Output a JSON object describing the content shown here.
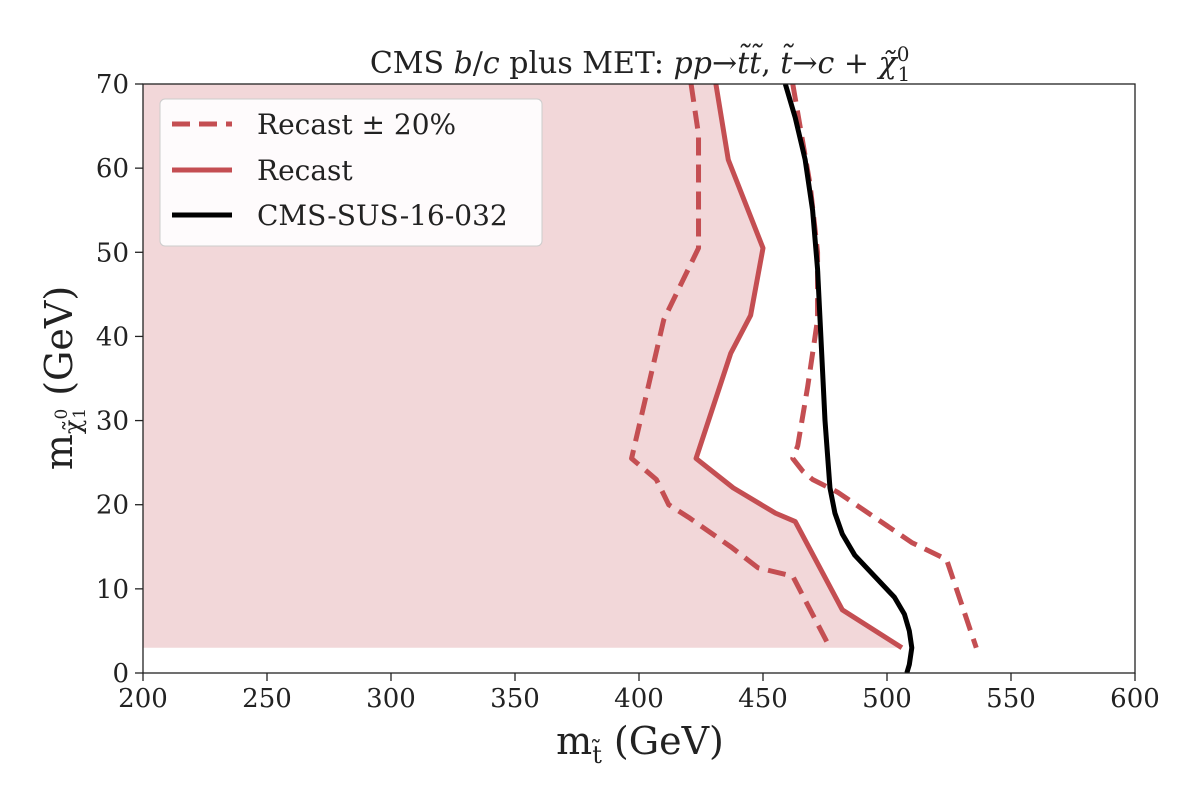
{
  "chart_data": {
    "type": "line",
    "title": "CMS b/c plus MET: pp→t̃t̃, t̃→c + χ̃⁰₁",
    "xlabel": "m_t̃ (GeV)",
    "ylabel": "m_χ̃⁰₁ (GeV)",
    "xlim": [
      200,
      600
    ],
    "ylim": [
      0,
      70
    ],
    "x_ticks": [
      200,
      250,
      300,
      350,
      400,
      450,
      500,
      550,
      600
    ],
    "y_ticks": [
      0,
      10,
      20,
      30,
      40,
      50,
      60,
      70
    ],
    "grid": false,
    "legend_position": "top-left",
    "legend": [
      "Recast ± 20%",
      "Recast",
      "CMS-SUS-16-032"
    ],
    "excluded_region": {
      "color": "#f2d7d9",
      "points": [
        [
          200,
          3
        ],
        [
          200,
          70
        ],
        [
          431,
          70
        ],
        [
          436,
          61
        ],
        [
          450,
          50.5
        ],
        [
          445,
          42.5
        ],
        [
          437,
          38
        ],
        [
          423,
          25.5
        ],
        [
          438,
          22
        ],
        [
          455,
          19
        ],
        [
          463,
          18
        ],
        [
          482,
          7.5
        ],
        [
          506,
          3
        ]
      ]
    },
    "series": [
      {
        "name": "Recast ± 20%",
        "style": "dashed",
        "color": "#c44e52",
        "points": [
          [
            421,
            70
          ],
          [
            424,
            64
          ],
          [
            424,
            50.5
          ],
          [
            410,
            42
          ],
          [
            397,
            25.5
          ],
          [
            407,
            23
          ],
          [
            412,
            20
          ],
          [
            420,
            18.5
          ],
          [
            437,
            15
          ],
          [
            448,
            12.5
          ],
          [
            462,
            11.5
          ],
          [
            477,
            3
          ]
        ]
      },
      {
        "name": "Recast ± 20% upper",
        "style": "dashed",
        "color": "#c44e52",
        "points": [
          [
            462,
            70
          ],
          [
            469,
            58
          ],
          [
            472,
            50
          ],
          [
            472,
            42
          ],
          [
            468,
            34
          ],
          [
            464,
            27
          ],
          [
            462,
            25.5
          ],
          [
            466,
            24
          ],
          [
            470,
            23
          ],
          [
            480,
            21.5
          ],
          [
            490,
            19.5
          ],
          [
            500,
            17.5
          ],
          [
            510,
            15.5
          ],
          [
            524,
            13.5
          ],
          [
            536,
            3
          ]
        ]
      },
      {
        "name": "Recast",
        "style": "solid",
        "color": "#c44e52",
        "points": [
          [
            431,
            70
          ],
          [
            436,
            61
          ],
          [
            450,
            50.5
          ],
          [
            445,
            42.5
          ],
          [
            437,
            38
          ],
          [
            423,
            25.5
          ],
          [
            438,
            22
          ],
          [
            455,
            19
          ],
          [
            463,
            18
          ],
          [
            482,
            7.5
          ],
          [
            506,
            3
          ]
        ]
      },
      {
        "name": "CMS-SUS-16-032",
        "style": "solid",
        "color": "#000000",
        "points": [
          [
            459,
            70
          ],
          [
            463,
            66
          ],
          [
            467,
            61
          ],
          [
            470,
            55
          ],
          [
            472,
            48
          ],
          [
            473,
            42
          ],
          [
            474,
            36
          ],
          [
            475,
            30
          ],
          [
            476,
            26
          ],
          [
            477,
            22
          ],
          [
            479,
            19
          ],
          [
            482,
            16.5
          ],
          [
            487,
            14
          ],
          [
            495,
            11.5
          ],
          [
            503,
            9
          ],
          [
            507,
            7
          ],
          [
            509,
            5
          ],
          [
            510,
            3
          ],
          [
            509,
            1
          ],
          [
            508,
            0
          ]
        ]
      }
    ]
  }
}
